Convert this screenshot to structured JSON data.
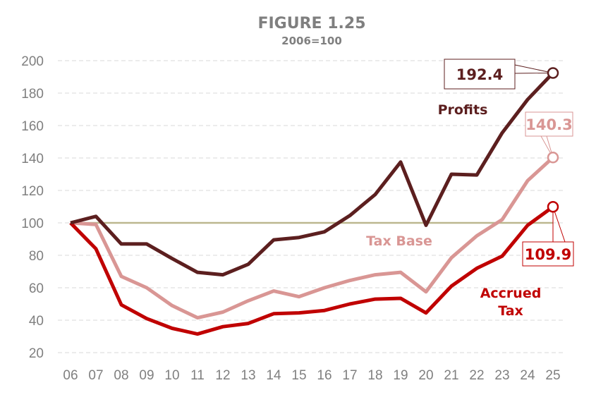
{
  "chart_data": {
    "type": "line",
    "title": "FIGURE 1.25",
    "subtitle": "2006=100",
    "xlabel": "",
    "ylabel": "",
    "categories": [
      "06",
      "07",
      "08",
      "09",
      "10",
      "11",
      "12",
      "13",
      "14",
      "15",
      "16",
      "17",
      "18",
      "19",
      "20",
      "21",
      "22",
      "23",
      "24",
      "25"
    ],
    "ylim": [
      20,
      200
    ],
    "yticks": [
      20,
      40,
      60,
      80,
      100,
      120,
      140,
      160,
      180,
      200
    ],
    "grid": true,
    "reference_line": {
      "value": 100,
      "color": "#bcb78f"
    },
    "series": [
      {
        "name": "Profits",
        "color": "#5c1f1f",
        "values": [
          100,
          104,
          87,
          87,
          78,
          69.5,
          68,
          74.5,
          89.5,
          91,
          94.5,
          104.5,
          117.5,
          137.5,
          98.5,
          130,
          129.5,
          155.5,
          176,
          192.4
        ],
        "end_label": "192.4"
      },
      {
        "name": "Tax Base",
        "color": "#d99694",
        "values": [
          100,
          99,
          67,
          60,
          49,
          41.5,
          45,
          52,
          58,
          54.5,
          60,
          64.5,
          68,
          69.5,
          57.5,
          78.5,
          92,
          102,
          126,
          140.3
        ],
        "end_label": "140.3"
      },
      {
        "name": "Accrued Tax",
        "name_lines": [
          "Accrued",
          "Tax"
        ],
        "color": "#c00000",
        "values": [
          100,
          84,
          49.5,
          41,
          35,
          31.5,
          36,
          38,
          44,
          44.5,
          46,
          50,
          53,
          53.5,
          44.5,
          61,
          72,
          79.5,
          98.5,
          109.9
        ],
        "end_label": "109.9"
      }
    ]
  }
}
